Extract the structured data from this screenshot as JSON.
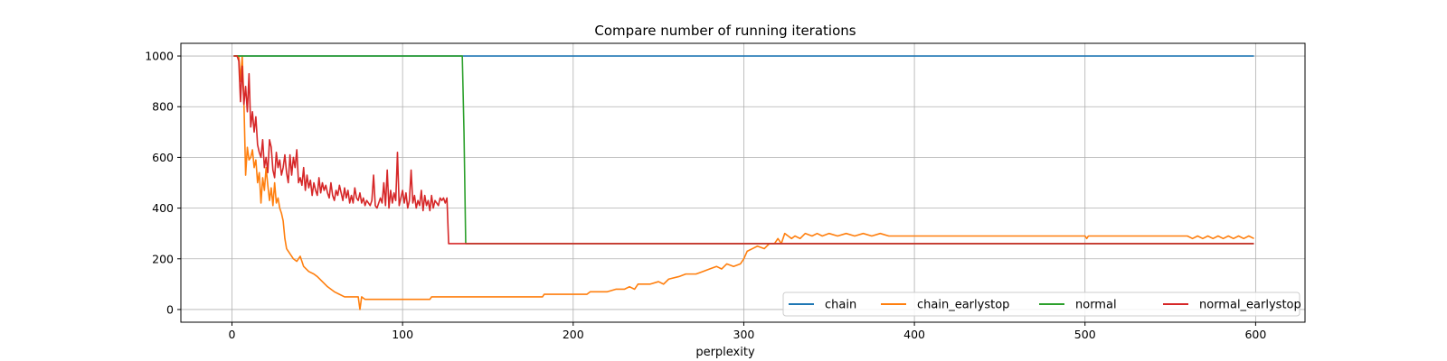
{
  "chart_data": {
    "type": "line",
    "title": "Compare number of running iterations",
    "xlabel": "perplexity",
    "ylabel": "",
    "xlim": [
      -29.95,
      628.95
    ],
    "ylim": [
      -50,
      1050
    ],
    "xticks": [
      0,
      100,
      200,
      300,
      400,
      500,
      600
    ],
    "yticks": [
      0,
      200,
      400,
      600,
      800,
      1000
    ],
    "grid": true,
    "legend_position": "lower-right",
    "series": [
      {
        "name": "chain",
        "color": "#1f77b4",
        "points": [
          [
            1,
            1000
          ],
          [
            599,
            1000
          ]
        ]
      },
      {
        "name": "chain_earlystop",
        "color": "#ff7f0e",
        "points": [
          [
            1,
            1000
          ],
          [
            3,
            1000
          ],
          [
            4,
            1000
          ],
          [
            5,
            900
          ],
          [
            6,
            1000
          ],
          [
            7,
            820
          ],
          [
            8,
            530
          ],
          [
            9,
            640
          ],
          [
            10,
            590
          ],
          [
            11,
            600
          ],
          [
            12,
            630
          ],
          [
            13,
            560
          ],
          [
            14,
            590
          ],
          [
            15,
            500
          ],
          [
            16,
            540
          ],
          [
            17,
            420
          ],
          [
            18,
            520
          ],
          [
            19,
            470
          ],
          [
            20,
            560
          ],
          [
            21,
            490
          ],
          [
            22,
            430
          ],
          [
            23,
            480
          ],
          [
            24,
            410
          ],
          [
            25,
            500
          ],
          [
            26,
            420
          ],
          [
            27,
            440
          ],
          [
            28,
            400
          ],
          [
            29,
            380
          ],
          [
            30,
            350
          ],
          [
            31,
            280
          ],
          [
            32,
            240
          ],
          [
            34,
            220
          ],
          [
            36,
            200
          ],
          [
            38,
            190
          ],
          [
            40,
            210
          ],
          [
            42,
            170
          ],
          [
            45,
            150
          ],
          [
            48,
            140
          ],
          [
            50,
            130
          ],
          [
            53,
            110
          ],
          [
            56,
            90
          ],
          [
            60,
            70
          ],
          [
            63,
            60
          ],
          [
            66,
            50
          ],
          [
            70,
            50
          ],
          [
            74,
            50
          ],
          [
            75,
            0
          ],
          [
            76,
            50
          ],
          [
            78,
            40
          ],
          [
            80,
            40
          ],
          [
            85,
            40
          ],
          [
            100,
            40
          ],
          [
            116,
            40
          ],
          [
            117,
            50
          ],
          [
            130,
            50
          ],
          [
            150,
            50
          ],
          [
            170,
            50
          ],
          [
            182,
            50
          ],
          [
            183,
            60
          ],
          [
            200,
            60
          ],
          [
            208,
            60
          ],
          [
            210,
            70
          ],
          [
            220,
            70
          ],
          [
            225,
            80
          ],
          [
            230,
            80
          ],
          [
            233,
            90
          ],
          [
            236,
            80
          ],
          [
            238,
            100
          ],
          [
            245,
            100
          ],
          [
            250,
            110
          ],
          [
            253,
            100
          ],
          [
            256,
            120
          ],
          [
            262,
            130
          ],
          [
            266,
            140
          ],
          [
            272,
            140
          ],
          [
            276,
            150
          ],
          [
            280,
            160
          ],
          [
            284,
            170
          ],
          [
            287,
            160
          ],
          [
            290,
            180
          ],
          [
            294,
            170
          ],
          [
            298,
            180
          ],
          [
            300,
            200
          ],
          [
            302,
            230
          ],
          [
            305,
            240
          ],
          [
            308,
            250
          ],
          [
            312,
            240
          ],
          [
            315,
            260
          ],
          [
            318,
            260
          ],
          [
            320,
            280
          ],
          [
            322,
            260
          ],
          [
            324,
            300
          ],
          [
            326,
            290
          ],
          [
            328,
            280
          ],
          [
            330,
            290
          ],
          [
            333,
            280
          ],
          [
            336,
            300
          ],
          [
            340,
            290
          ],
          [
            343,
            300
          ],
          [
            346,
            290
          ],
          [
            350,
            300
          ],
          [
            355,
            290
          ],
          [
            360,
            300
          ],
          [
            365,
            290
          ],
          [
            370,
            300
          ],
          [
            375,
            290
          ],
          [
            380,
            300
          ],
          [
            385,
            290
          ],
          [
            390,
            290
          ],
          [
            400,
            290
          ],
          [
            450,
            290
          ],
          [
            500,
            290
          ],
          [
            501,
            280
          ],
          [
            502,
            290
          ],
          [
            560,
            290
          ],
          [
            563,
            280
          ],
          [
            566,
            290
          ],
          [
            569,
            280
          ],
          [
            572,
            290
          ],
          [
            575,
            280
          ],
          [
            578,
            290
          ],
          [
            581,
            280
          ],
          [
            584,
            290
          ],
          [
            587,
            280
          ],
          [
            590,
            290
          ],
          [
            593,
            280
          ],
          [
            596,
            290
          ],
          [
            599,
            280
          ]
        ]
      },
      {
        "name": "normal",
        "color": "#2ca02c",
        "points": [
          [
            1,
            1000
          ],
          [
            135,
            1000
          ],
          [
            136,
            700
          ],
          [
            137,
            260
          ],
          [
            599,
            260
          ]
        ]
      },
      {
        "name": "normal_earlystop",
        "color": "#d62728",
        "points": [
          [
            1,
            1000
          ],
          [
            3,
            1000
          ],
          [
            4,
            980
          ],
          [
            5,
            820
          ],
          [
            6,
            960
          ],
          [
            7,
            810
          ],
          [
            8,
            880
          ],
          [
            9,
            780
          ],
          [
            10,
            930
          ],
          [
            11,
            720
          ],
          [
            12,
            780
          ],
          [
            13,
            700
          ],
          [
            14,
            760
          ],
          [
            15,
            650
          ],
          [
            16,
            620
          ],
          [
            17,
            600
          ],
          [
            18,
            670
          ],
          [
            19,
            560
          ],
          [
            20,
            600
          ],
          [
            21,
            540
          ],
          [
            22,
            670
          ],
          [
            23,
            640
          ],
          [
            24,
            550
          ],
          [
            25,
            520
          ],
          [
            26,
            620
          ],
          [
            27,
            560
          ],
          [
            28,
            590
          ],
          [
            29,
            530
          ],
          [
            30,
            560
          ],
          [
            31,
            610
          ],
          [
            32,
            540
          ],
          [
            33,
            500
          ],
          [
            34,
            610
          ],
          [
            35,
            530
          ],
          [
            36,
            600
          ],
          [
            37,
            560
          ],
          [
            38,
            630
          ],
          [
            39,
            500
          ],
          [
            40,
            520
          ],
          [
            41,
            490
          ],
          [
            42,
            560
          ],
          [
            43,
            470
          ],
          [
            44,
            530
          ],
          [
            45,
            480
          ],
          [
            46,
            510
          ],
          [
            47,
            450
          ],
          [
            48,
            500
          ],
          [
            49,
            470
          ],
          [
            50,
            450
          ],
          [
            51,
            520
          ],
          [
            52,
            460
          ],
          [
            53,
            500
          ],
          [
            54,
            470
          ],
          [
            55,
            490
          ],
          [
            56,
            460
          ],
          [
            57,
            440
          ],
          [
            58,
            500
          ],
          [
            59,
            450
          ],
          [
            60,
            430
          ],
          [
            61,
            470
          ],
          [
            62,
            450
          ],
          [
            63,
            490
          ],
          [
            64,
            460
          ],
          [
            65,
            430
          ],
          [
            66,
            480
          ],
          [
            67,
            440
          ],
          [
            68,
            470
          ],
          [
            69,
            420
          ],
          [
            70,
            450
          ],
          [
            71,
            420
          ],
          [
            72,
            480
          ],
          [
            73,
            440
          ],
          [
            74,
            430
          ],
          [
            75,
            460
          ],
          [
            76,
            420
          ],
          [
            77,
            440
          ],
          [
            78,
            410
          ],
          [
            79,
            430
          ],
          [
            80,
            420
          ],
          [
            81,
            410
          ],
          [
            82,
            430
          ],
          [
            83,
            530
          ],
          [
            84,
            410
          ],
          [
            85,
            400
          ],
          [
            86,
            420
          ],
          [
            87,
            440
          ],
          [
            88,
            420
          ],
          [
            89,
            500
          ],
          [
            90,
            410
          ],
          [
            91,
            550
          ],
          [
            92,
            400
          ],
          [
            93,
            470
          ],
          [
            94,
            420
          ],
          [
            95,
            460
          ],
          [
            96,
            430
          ],
          [
            97,
            620
          ],
          [
            98,
            410
          ],
          [
            99,
            440
          ],
          [
            100,
            470
          ],
          [
            101,
            420
          ],
          [
            102,
            460
          ],
          [
            103,
            400
          ],
          [
            104,
            430
          ],
          [
            105,
            550
          ],
          [
            106,
            420
          ],
          [
            107,
            450
          ],
          [
            108,
            400
          ],
          [
            109,
            430
          ],
          [
            110,
            410
          ],
          [
            111,
            470
          ],
          [
            112,
            390
          ],
          [
            113,
            450
          ],
          [
            114,
            410
          ],
          [
            115,
            430
          ],
          [
            116,
            390
          ],
          [
            117,
            450
          ],
          [
            118,
            400
          ],
          [
            119,
            430
          ],
          [
            120,
            420
          ],
          [
            121,
            410
          ],
          [
            122,
            440
          ],
          [
            123,
            430
          ],
          [
            124,
            440
          ],
          [
            125,
            420
          ],
          [
            126,
            440
          ],
          [
            127,
            260
          ],
          [
            599,
            260
          ]
        ]
      }
    ]
  }
}
